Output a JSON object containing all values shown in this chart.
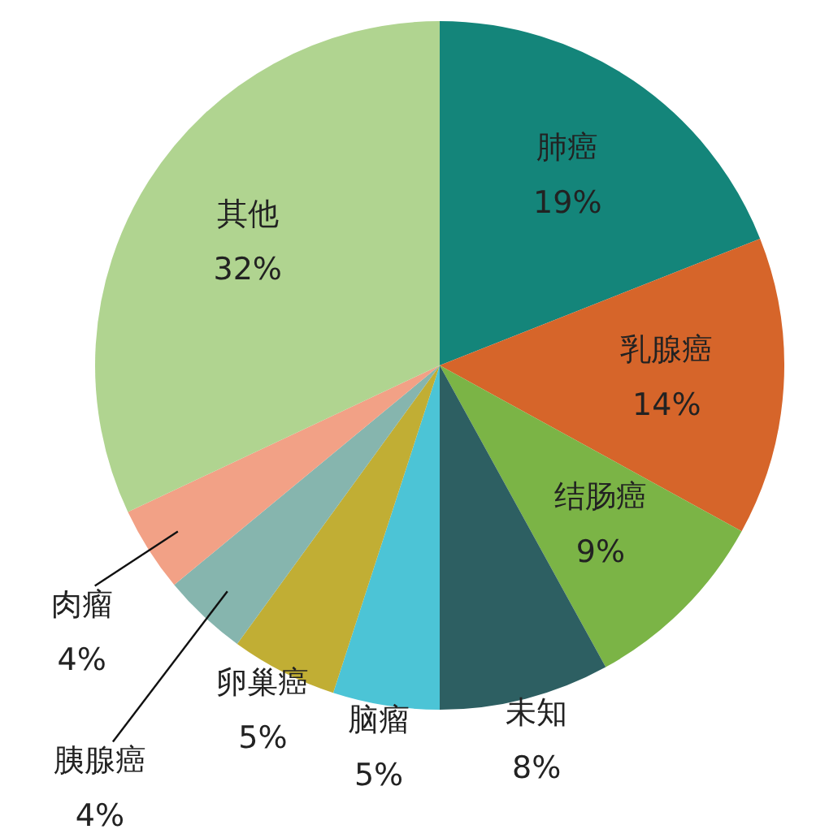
{
  "chart_data": {
    "type": "pie",
    "categories": [
      "肺癌",
      "乳腺癌",
      "结肠癌",
      "未知",
      "脑瘤",
      "卵巢癌",
      "胰腺癌",
      "肉瘤",
      "其他"
    ],
    "values": [
      19,
      14,
      9,
      8,
      5,
      5,
      4,
      4,
      32
    ],
    "value_labels": [
      "19%",
      "14%",
      "9%",
      "8%",
      "5%",
      "5%",
      "4%",
      "4%",
      "32%"
    ],
    "colors": [
      "#14857a",
      "#d6652a",
      "#7bb446",
      "#2d5f62",
      "#4cc4d6",
      "#c1ae34",
      "#86b5ae",
      "#f2a186",
      "#b0d490"
    ]
  }
}
